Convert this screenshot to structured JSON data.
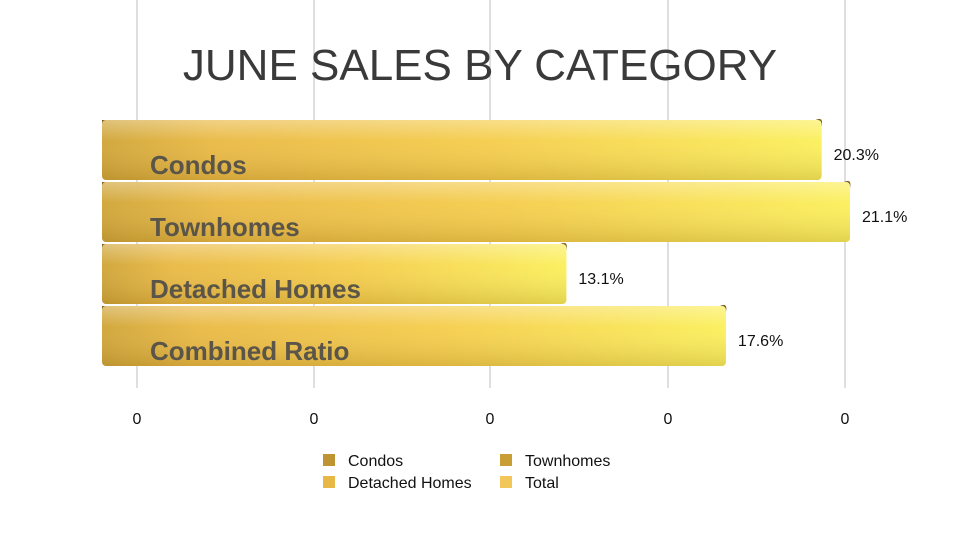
{
  "chart_data": {
    "type": "bar",
    "orientation": "horizontal",
    "title": "JUNE SALES BY CATEGORY",
    "categories": [
      "Condos",
      "Townhomes",
      "Detached Homes",
      "Combined Ratio"
    ],
    "values": [
      20.3,
      21.1,
      13.1,
      17.6
    ],
    "value_labels": [
      "20.3%",
      "21.1%",
      "13.1%",
      "17.6%"
    ],
    "unit": "%",
    "xlim": [
      0,
      21.1
    ],
    "x_tick_labels": [
      "0",
      "0",
      "0",
      "0",
      "0"
    ],
    "xlabel": "",
    "ylabel": "",
    "grid": "vertical",
    "legend": {
      "placement": "bottom",
      "entries": [
        "Condos",
        "Townhomes",
        "Detached Homes",
        "Total"
      ]
    },
    "colors": {
      "bar_light": "#fbf05a",
      "bar_mid": "#f1c845",
      "bar_dark": "#cfa436",
      "legend": [
        "#bf9432",
        "#c99f35",
        "#e8b846",
        "#f3c65a"
      ],
      "grid": "#bfbfbf"
    }
  }
}
